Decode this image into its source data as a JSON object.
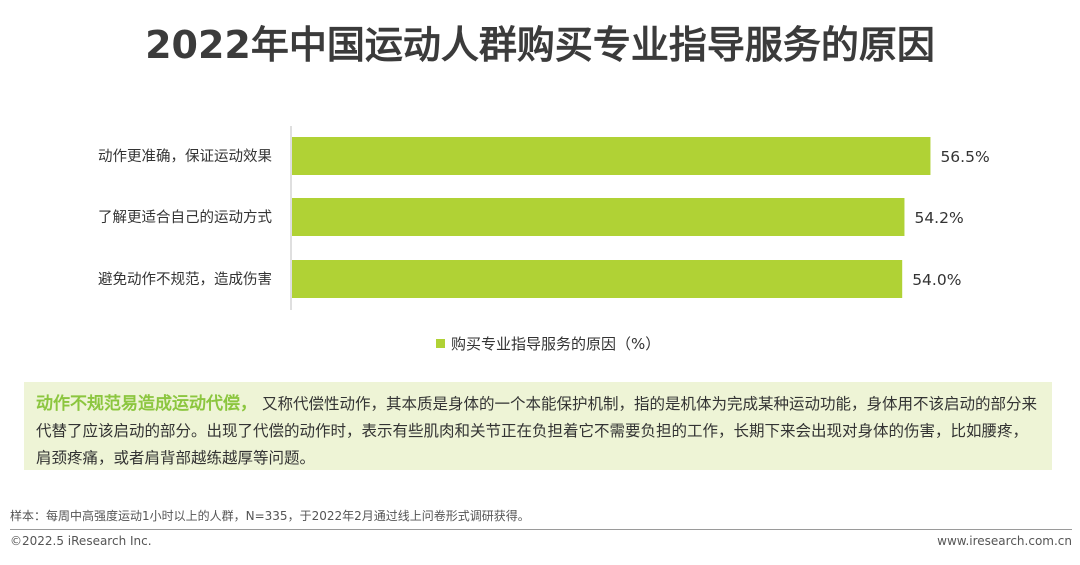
{
  "title": "2022年中国运动人群购买专业指导服务的原因",
  "colors": {
    "bar": "#b0d235",
    "highlight": "#8cc63f",
    "callout_bg": "#eef4d6"
  },
  "chart_data": {
    "type": "bar",
    "orientation": "horizontal",
    "categories": [
      "动作更准确，保证运动效果",
      "了解更适合自己的运动方式",
      "避免动作不规范，造成伤害"
    ],
    "series": [
      {
        "name": "购买专业指导服务的原因（%）",
        "values": [
          56.5,
          54.2,
          54.0
        ]
      }
    ],
    "value_labels": [
      "56.5%",
      "54.2%",
      "54.0%"
    ],
    "legend_position": "bottom",
    "grid": false
  },
  "callout": {
    "highlight": "动作不规范易造成运动代偿，",
    "body": "又称代偿性动作，其本质是身体的一个本能保护机制，指的是机体为完成某种运动功能，身体用不该启动的部分来代替了应该启动的部分。出现了代偿的动作时，表示有些肌肉和关节正在负担着它不需要负担的工作，长期下来会出现对身体的伤害，比如腰疼，肩颈疼痛，或者肩背部越练越厚等问题。"
  },
  "footer": {
    "note": "样本：每周中高强度运动1小时以上的人群，N=335，于2022年2月通过线上问卷形式调研获得。",
    "copyright": "©2022.5 iResearch Inc.",
    "site": "www.iresearch.com.cn"
  }
}
